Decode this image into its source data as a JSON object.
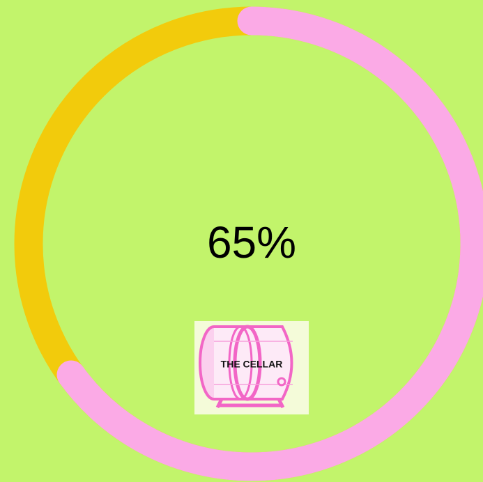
{
  "progress": {
    "value": 65,
    "label": "65%"
  },
  "logo": {
    "text": "THE CELLAR"
  }
}
